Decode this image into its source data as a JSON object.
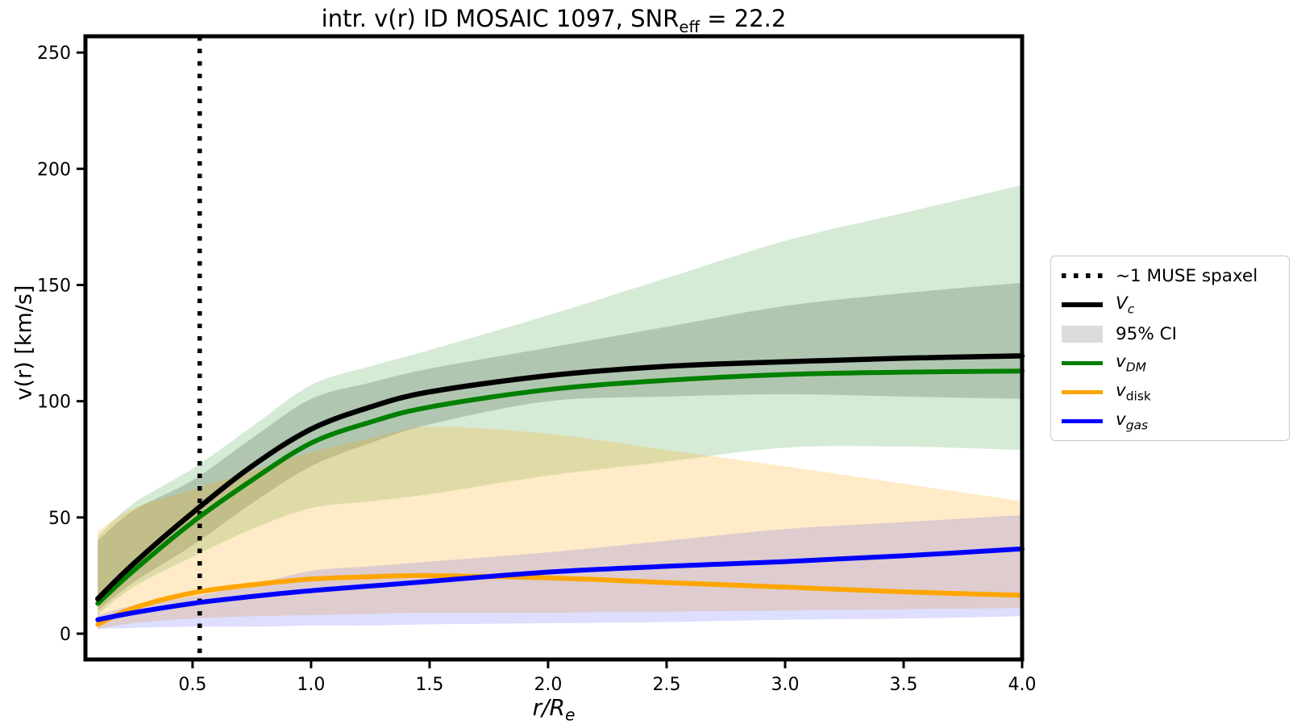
{
  "title": {
    "prefix": "intr. v(r) ID MOSAIC 1097, SNR",
    "sub": "eff",
    "suffix": " = 22.2"
  },
  "axes": {
    "ylabel": "v(r) [km/s]",
    "xlabel_main": "r/R",
    "xlabel_sub": "e"
  },
  "legend": {
    "items": [
      {
        "label": "~1 MUSE spaxel",
        "sub": "",
        "swatch": "dotted-line",
        "color": "#000000"
      },
      {
        "label": "V",
        "sub": "c",
        "swatch": "thick-line",
        "color": "#000000"
      },
      {
        "label": "95% CI",
        "sub": "",
        "swatch": "patch",
        "color": "#dcdcdc"
      },
      {
        "label": "v",
        "sub": "DM",
        "swatch": "line",
        "color": "#008000"
      },
      {
        "label": "v",
        "sub": "disk",
        "swatch": "line",
        "color": "#ffa500"
      },
      {
        "label": "v",
        "sub": "gas",
        "swatch": "line",
        "color": "#0000ff"
      }
    ]
  },
  "chart_data": {
    "type": "line",
    "title": "intr. v(r) ID MOSAIC 1097, SNR_eff = 22.2",
    "xlabel": "r/R_e",
    "ylabel": "v(r) [km/s]",
    "xlim": [
      0.048,
      4.0
    ],
    "ylim": [
      -11.1,
      257
    ],
    "x_ticks": [
      0.5,
      1.0,
      1.5,
      2.0,
      2.5,
      3.0,
      3.5,
      4.0
    ],
    "y_ticks": [
      0,
      50,
      100,
      150,
      200,
      250
    ],
    "grid": false,
    "legend_position": "outside-right",
    "legend_entries": [
      "~1 MUSE spaxel",
      "V_c",
      "95% CI",
      "v_DM",
      "v_disk",
      "v_gas"
    ],
    "vline": {
      "x": 0.53,
      "style": "dotted",
      "color": "#000000",
      "label": "~1 MUSE spaxel"
    },
    "x": [
      0.1,
      0.25,
      0.5,
      0.75,
      1.0,
      1.25,
      1.5,
      2.0,
      2.5,
      3.0,
      3.5,
      4.0
    ],
    "series": [
      {
        "name": "V_c",
        "color": "#000000",
        "width": 6.5,
        "zorder": 4,
        "values": [
          15,
          30,
          52,
          72,
          88,
          97.5,
          104,
          111,
          115,
          117,
          118.5,
          119.5
        ]
      },
      {
        "name": "v_DM",
        "color": "#008000",
        "width": 6,
        "zorder": 1,
        "values": [
          13,
          27,
          48,
          66,
          82,
          91,
          97.5,
          105,
          109,
          111.5,
          112.5,
          113
        ]
      },
      {
        "name": "v_disk",
        "color": "#ffa500",
        "width": 6,
        "zorder": 2,
        "values": [
          4,
          11,
          17.5,
          21,
          23.5,
          24.5,
          25,
          24,
          22,
          20,
          18,
          16.5
        ]
      },
      {
        "name": "v_gas",
        "color": "#0000ff",
        "width": 6,
        "zorder": 3,
        "values": [
          6,
          9,
          13,
          16,
          18.5,
          20.5,
          22.5,
          26.5,
          29,
          31,
          33.5,
          36.5
        ]
      }
    ],
    "bands": [
      {
        "name": "Vc-95CI",
        "color": "#808080",
        "alpha": 0.35,
        "upper": [
          40,
          53,
          66,
          84,
          101,
          108,
          114,
          123,
          132,
          141,
          146.5,
          151
        ],
        "lower": [
          10,
          22,
          38,
          56,
          72,
          82,
          90,
          100,
          102,
          103,
          102,
          101
        ]
      },
      {
        "name": "vDM-CI",
        "color": "#008000",
        "alpha": 0.16,
        "upper": [
          42,
          56,
          71,
          89,
          107,
          115,
          122,
          137,
          153,
          169,
          181,
          193
        ],
        "lower": [
          8,
          20,
          33,
          45,
          54,
          57,
          60,
          68,
          74,
          80,
          80.5,
          79
        ]
      },
      {
        "name": "vdisk-CI",
        "color": "#ffa500",
        "alpha": 0.22,
        "upper": [
          44,
          54,
          62,
          70,
          78,
          84,
          89,
          86,
          79,
          72,
          64.5,
          57
        ],
        "lower": [
          2,
          4.5,
          6.5,
          7.5,
          8,
          8.5,
          9,
          9,
          9.5,
          10,
          10.5,
          11
        ]
      },
      {
        "name": "vgas-CI",
        "color": "#0000ff",
        "alpha": 0.13,
        "upper": [
          8,
          12,
          16,
          21,
          27,
          29,
          31,
          35,
          40,
          45,
          48,
          51
        ],
        "lower": [
          2,
          2.5,
          3,
          3,
          3.5,
          3.5,
          4,
          4.5,
          5,
          6,
          6.5,
          7.5
        ]
      }
    ]
  }
}
